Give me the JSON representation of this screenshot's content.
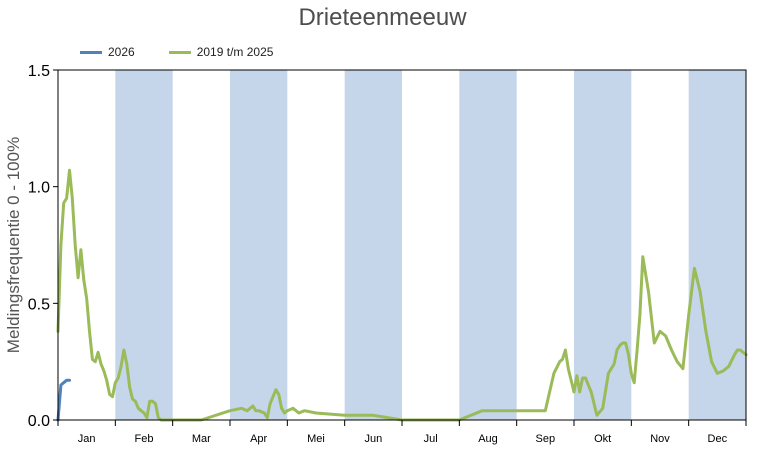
{
  "chart_data": {
    "type": "line",
    "title": "Drieteenmeeuw",
    "ylabel": "Meldingsfrequentie 0 - 100%",
    "xlabel": "",
    "ylim": [
      0,
      1.5
    ],
    "yticks": [
      "0.0",
      "0.5",
      "1.0",
      "1.5"
    ],
    "months": [
      "Jan",
      "Feb",
      "Mar",
      "Apr",
      "Mei",
      "Jun",
      "Jul",
      "Aug",
      "Sep",
      "Okt",
      "Nov",
      "Dec"
    ],
    "shaded_months": [
      "Feb",
      "Apr",
      "Jun",
      "Aug",
      "Okt",
      "Dec"
    ],
    "shade_color": "#c5d5ea",
    "legend_position": "top-left",
    "series": [
      {
        "name": "2026",
        "color": "#4f81bd",
        "x": [
          0,
          0.05,
          0.1,
          0.15,
          0.2
        ],
        "values": [
          0.0,
          0.15,
          0.16,
          0.17,
          0.17
        ]
      },
      {
        "name": "2019 t/m 2025",
        "color": "#9bbb59",
        "x": [
          0,
          0.05,
          0.1,
          0.15,
          0.2,
          0.25,
          0.3,
          0.35,
          0.4,
          0.45,
          0.5,
          0.55,
          0.6,
          0.65,
          0.7,
          0.75,
          0.8,
          0.85,
          0.9,
          0.95,
          1.0,
          1.05,
          1.1,
          1.15,
          1.2,
          1.25,
          1.3,
          1.35,
          1.4,
          1.45,
          1.5,
          1.55,
          1.6,
          1.65,
          1.7,
          1.75,
          1.8,
          1.85,
          1.9,
          2.0,
          2.5,
          3.0,
          3.2,
          3.3,
          3.4,
          3.45,
          3.5,
          3.6,
          3.65,
          3.7,
          3.75,
          3.8,
          3.85,
          3.9,
          3.95,
          4.0,
          4.1,
          4.2,
          4.3,
          4.5,
          5.0,
          5.5,
          6.0,
          6.5,
          7.0,
          7.4,
          7.5,
          8.0,
          8.5,
          8.65,
          8.75,
          8.8,
          8.85,
          8.9,
          9.0,
          9.05,
          9.1,
          9.15,
          9.2,
          9.3,
          9.4,
          9.5,
          9.6,
          9.7,
          9.75,
          9.8,
          9.85,
          9.9,
          9.95,
          10.0,
          10.05,
          10.1,
          10.15,
          10.2,
          10.3,
          10.4,
          10.5,
          10.6,
          10.7,
          10.8,
          10.9,
          11.0,
          11.1,
          11.2,
          11.3,
          11.4,
          11.5,
          11.6,
          11.7,
          11.8,
          11.85,
          11.9,
          12.0
        ],
        "values": [
          0.38,
          0.75,
          0.93,
          0.95,
          1.07,
          0.95,
          0.75,
          0.61,
          0.73,
          0.6,
          0.52,
          0.38,
          0.26,
          0.25,
          0.29,
          0.24,
          0.21,
          0.17,
          0.11,
          0.1,
          0.16,
          0.18,
          0.23,
          0.3,
          0.24,
          0.14,
          0.09,
          0.08,
          0.05,
          0.04,
          0.03,
          0.01,
          0.08,
          0.08,
          0.07,
          0.01,
          0.0,
          0.0,
          0.0,
          0.0,
          0.0,
          0.04,
          0.05,
          0.04,
          0.06,
          0.04,
          0.04,
          0.03,
          0.01,
          0.07,
          0.1,
          0.13,
          0.11,
          0.05,
          0.03,
          0.04,
          0.05,
          0.03,
          0.04,
          0.03,
          0.02,
          0.02,
          0.0,
          0.0,
          0.0,
          0.04,
          0.04,
          0.04,
          0.04,
          0.2,
          0.25,
          0.26,
          0.3,
          0.22,
          0.12,
          0.19,
          0.12,
          0.18,
          0.18,
          0.12,
          0.02,
          0.05,
          0.2,
          0.24,
          0.3,
          0.32,
          0.33,
          0.33,
          0.28,
          0.2,
          0.16,
          0.3,
          0.45,
          0.7,
          0.55,
          0.33,
          0.38,
          0.36,
          0.3,
          0.25,
          0.22,
          0.45,
          0.65,
          0.55,
          0.38,
          0.25,
          0.2,
          0.21,
          0.23,
          0.28,
          0.3,
          0.3,
          0.28
        ]
      }
    ]
  }
}
